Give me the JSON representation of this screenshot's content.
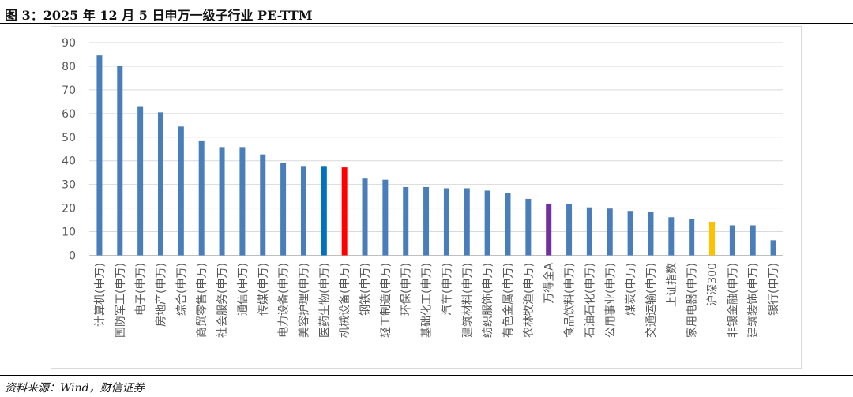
{
  "figure": {
    "title": "图 3：2025 年 12 月 5 日申万一级子行业 PE-TTM",
    "source": "资料来源：Wind，财信证券"
  },
  "chart_data": {
    "type": "bar",
    "title": "",
    "xlabel": "",
    "ylabel": "",
    "ylim": [
      0,
      90
    ],
    "yticks": [
      0,
      10,
      20,
      30,
      40,
      50,
      60,
      70,
      80,
      90
    ],
    "grid": true,
    "legend": "none",
    "categories": [
      "计算机(申万)",
      "国防军工(申万)",
      "电子(申万)",
      "房地产(申万)",
      "综合(申万)",
      "商贸零售(申万)",
      "社会服务(申万)",
      "通信(申万)",
      "传媒(申万)",
      "电力设备(申万)",
      "美容护理(申万)",
      "医药生物(申万)",
      "机械设备(申万)",
      "钢铁(申万)",
      "轻工制造(申万)",
      "环保(申万)",
      "基础化工(申万)",
      "汽车(申万)",
      "建筑材料(申万)",
      "纺织服饰(申万)",
      "有色金属(申万)",
      "农林牧渔(申万)",
      "万得全A",
      "食品饮料(申万)",
      "石油石化(申万)",
      "公用事业(申万)",
      "煤炭(申万)",
      "交通运输(申万)",
      "上证指数",
      "家用电器(申万)",
      "沪深300",
      "非银金融(申万)",
      "建筑装饰(申万)",
      "银行(申万)"
    ],
    "values": [
      84.6,
      80.0,
      63.1,
      60.5,
      54.5,
      48.3,
      45.8,
      45.8,
      42.7,
      39.2,
      37.8,
      37.8,
      37.2,
      32.5,
      32.0,
      28.9,
      28.9,
      28.4,
      28.4,
      27.4,
      26.4,
      23.9,
      21.9,
      21.7,
      20.3,
      19.8,
      18.8,
      18.2,
      16.1,
      15.2,
      14.2,
      12.7,
      12.7,
      6.4
    ],
    "colors": {
      "default": "#4a7ebb",
      "医药生物(申万)": "#0070c0",
      "机械设备(申万)": "#ff0000",
      "万得全A": "#7030a0",
      "沪深300": "#ffc000"
    },
    "grid_color": "#d9d9d9",
    "axis_color": "#bfbfbf"
  }
}
